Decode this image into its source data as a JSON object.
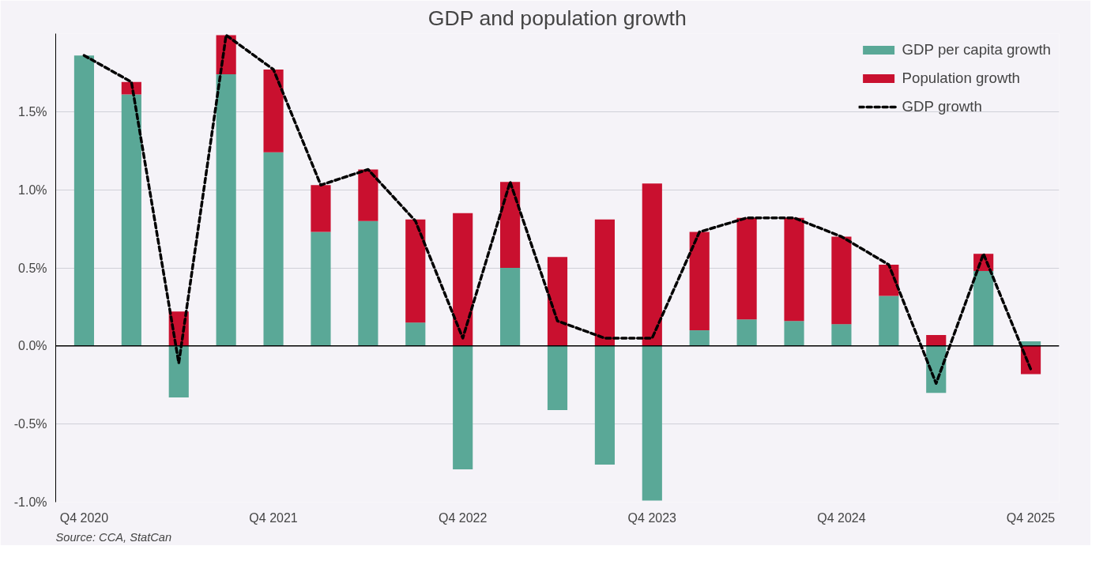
{
  "chart_data": {
    "type": "bar",
    "title": "GDP and population growth",
    "categories": [
      "Q4 2020",
      null,
      null,
      null,
      "Q4 2021",
      null,
      null,
      null,
      "Q4 2022",
      null,
      null,
      null,
      "Q4 2023",
      null,
      null,
      null,
      "Q4 2024",
      null,
      null,
      null,
      "Q4 2025"
    ],
    "stacked": true,
    "series": [
      {
        "name": "GDP per capita growth",
        "color": "#5aa897",
        "values": [
          1.86,
          1.61,
          -0.33,
          1.74,
          1.24,
          0.73,
          0.8,
          0.15,
          -0.79,
          0.5,
          -0.41,
          -0.76,
          -0.99,
          0.1,
          0.17,
          0.16,
          0.14,
          0.32,
          -0.3,
          0.48,
          0.03
        ]
      },
      {
        "name": "Population growth",
        "color": "#c9102f",
        "values": [
          null,
          0.08,
          0.22,
          0.25,
          0.53,
          0.3,
          0.33,
          0.66,
          0.85,
          0.55,
          0.57,
          0.81,
          1.04,
          0.63,
          0.65,
          0.66,
          0.56,
          0.2,
          0.07,
          0.11,
          -0.18
        ]
      },
      {
        "name": "GDP growth",
        "type": "line",
        "color": "#000000",
        "line_style": "dashed",
        "values": [
          1.86,
          1.69,
          -0.11,
          1.99,
          1.77,
          1.03,
          1.13,
          0.8,
          0.05,
          1.05,
          0.16,
          0.05,
          0.05,
          0.73,
          0.82,
          0.82,
          0.7,
          0.52,
          -0.24,
          0.59,
          -0.15
        ]
      }
    ],
    "ylim": [
      -1.0,
      2.0
    ],
    "yticks": [
      {
        "value": -1.0,
        "label": "-1.0%"
      },
      {
        "value": -0.5,
        "label": "-0.5%"
      },
      {
        "value": 0.0,
        "label": "0.0%"
      },
      {
        "value": 0.5,
        "label": "0.5%"
      },
      {
        "value": 1.0,
        "label": "1.0%"
      },
      {
        "value": 1.5,
        "label": "1.5%"
      }
    ],
    "grid": "y",
    "legend": "top right",
    "annotations": [
      "Source: CCA, StatCan"
    ]
  }
}
